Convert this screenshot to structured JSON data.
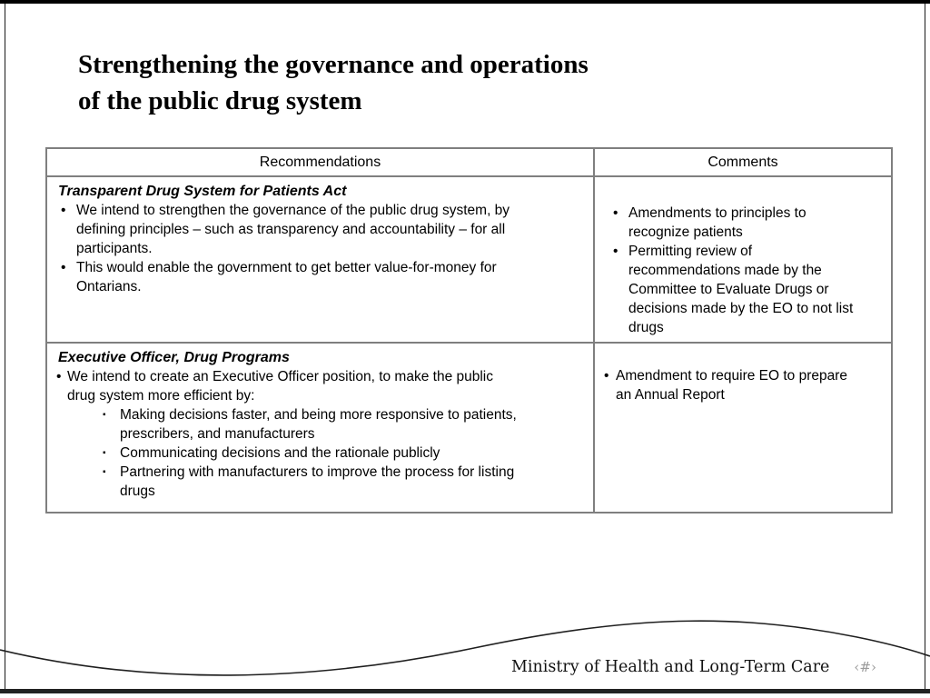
{
  "title": {
    "line1": "Strengthening the governance and operations",
    "line2": "of the public drug system"
  },
  "table": {
    "headers": [
      "Recommendations",
      "Comments"
    ],
    "bullet_glyph": "•",
    "sub_bullet_glyph": "▪",
    "rows": [
      {
        "heading": "Transparent Drug System for Patients Act",
        "items": [
          {
            "level": 1,
            "text": "We intend to strengthen the governance of the public drug system, by\ndefining principles – such as transparency and accountability – for all\nparticipants."
          },
          {
            "level": 1,
            "text": "This would enable the government to get better value-for-money for\nOntarians."
          }
        ],
        "comments": [
          "Amendments to principles to\nrecognize patients",
          "Permitting review of\nrecommendations made by the\nCommittee to Evaluate Drugs or\ndecisions made by the EO to not list\ndrugs"
        ]
      },
      {
        "heading": "Executive Officer, Drug Programs",
        "items": [
          {
            "level": 1,
            "text": "We intend to create an Executive Officer position, to make the public\ndrug system more efficient by:"
          },
          {
            "level": 2,
            "text": "Making decisions faster, and being more responsive to patients,\nprescribers, and manufacturers"
          },
          {
            "level": 2,
            "text": "Communicating decisions and the rationale publicly"
          },
          {
            "level": 2,
            "text": "Partnering with manufacturers to improve the process for listing\ndrugs"
          }
        ],
        "comments": [
          "Amendment to require EO to prepare\nan Annual Report"
        ]
      }
    ]
  },
  "footer": {
    "ministry": "Ministry of Health and Long-Term Care",
    "page_placeholder": "‹#›"
  },
  "colors": {
    "table_border": "#7f7f7f",
    "frame": "#000000",
    "page_placeholder_gray": "#9b9b9b"
  }
}
